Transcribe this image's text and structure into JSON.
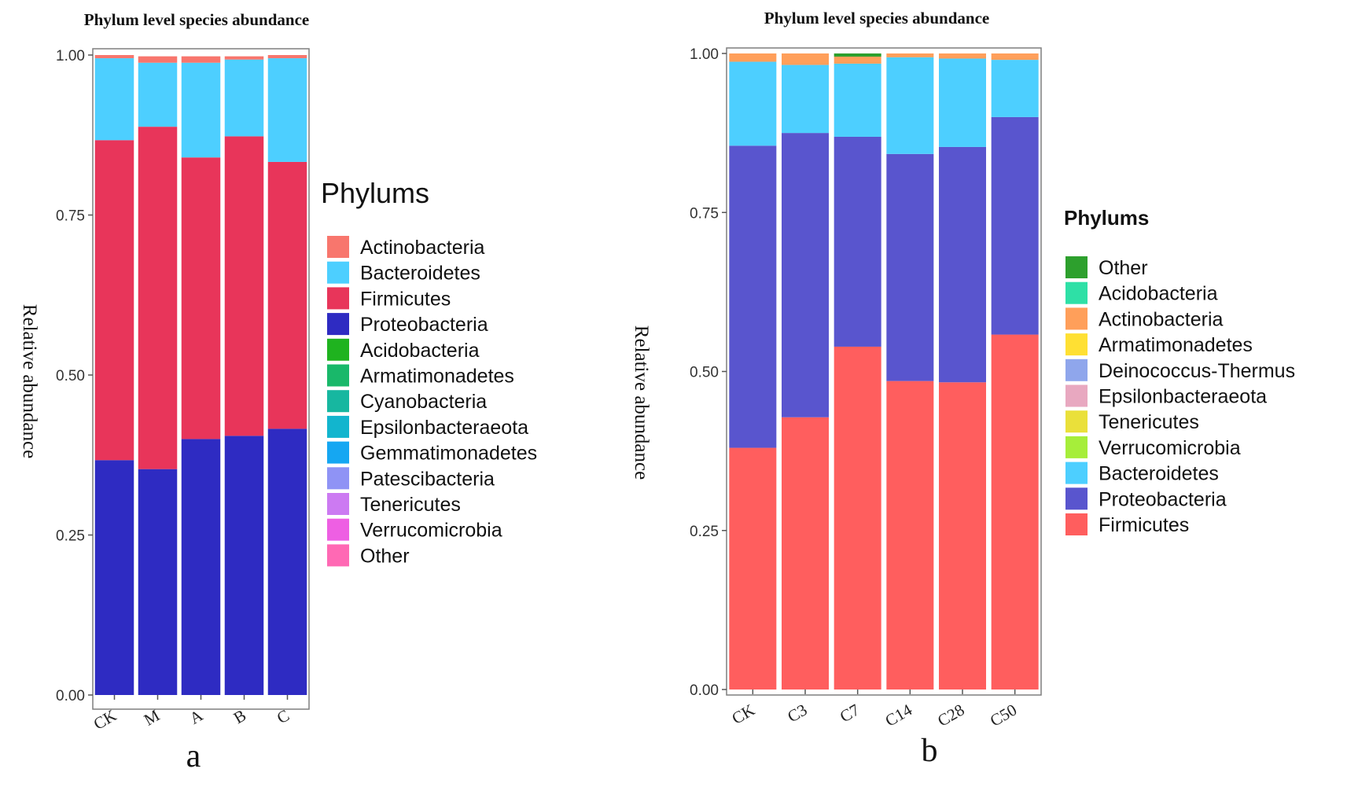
{
  "chart_data": [
    {
      "type": "stacked_bar",
      "panel_label": "a",
      "title": "Phylum level species abundance",
      "xlabel": "",
      "ylabel": "Relative abundance",
      "ylim": [
        0,
        1
      ],
      "yticks": [
        "0.00",
        "0.25",
        "0.50",
        "0.75",
        "1.00"
      ],
      "categories": [
        "CK",
        "M",
        "A",
        "B",
        "C"
      ],
      "legend_title": "Phylums",
      "legend_position": "right",
      "stack_order_bottom_to_top": [
        "Proteobacteria",
        "Firmicutes",
        "Bacteroidetes",
        "Actinobacteria"
      ],
      "series": [
        {
          "name": "Actinobacteria",
          "color": "#F8766D",
          "values": [
            0.005,
            0.01,
            0.01,
            0.005,
            0.005
          ]
        },
        {
          "name": "Bacteroidetes",
          "color": "#4DCFFF",
          "values": [
            0.128,
            0.1,
            0.148,
            0.12,
            0.162
          ]
        },
        {
          "name": "Firmicutes",
          "color": "#E8355A",
          "values": [
            0.5,
            0.535,
            0.44,
            0.468,
            0.417
          ]
        },
        {
          "name": "Proteobacteria",
          "color": "#2E2BC2",
          "values": [
            0.367,
            0.353,
            0.4,
            0.405,
            0.416
          ]
        },
        {
          "name": "Acidobacteria",
          "color": "#1FB31F",
          "values": [
            0,
            0,
            0,
            0,
            0
          ]
        },
        {
          "name": "Armatimonadetes",
          "color": "#19B86A",
          "values": [
            0,
            0,
            0,
            0,
            0
          ]
        },
        {
          "name": "Cyanobacteria",
          "color": "#17B7A0",
          "values": [
            0,
            0,
            0,
            0,
            0
          ]
        },
        {
          "name": "Epsilonbacteraeota",
          "color": "#12B5CE",
          "values": [
            0,
            0,
            0,
            0,
            0
          ]
        },
        {
          "name": "Gemmatimonadetes",
          "color": "#15A7F2",
          "values": [
            0,
            0,
            0,
            0,
            0
          ]
        },
        {
          "name": "Patescibacteria",
          "color": "#8F93F5",
          "values": [
            0,
            0,
            0,
            0,
            0
          ]
        },
        {
          "name": "Tenericutes",
          "color": "#CC7AF2",
          "values": [
            0,
            0,
            0,
            0,
            0
          ]
        },
        {
          "name": "Verrucomicrobia",
          "color": "#EE5FE3",
          "values": [
            0,
            0,
            0,
            0,
            0
          ]
        },
        {
          "name": "Other",
          "color": "#FF69B4",
          "values": [
            0,
            0,
            0,
            0,
            0
          ]
        }
      ]
    },
    {
      "type": "stacked_bar",
      "panel_label": "b",
      "title": "Phylum level species abundance",
      "xlabel": "",
      "ylabel": "Relative abundance",
      "ylim": [
        0,
        1
      ],
      "yticks": [
        "0.00",
        "0.25",
        "0.50",
        "0.75",
        "1.00"
      ],
      "categories": [
        "CK",
        "C3",
        "C7",
        "C14",
        "C28",
        "C50"
      ],
      "legend_title": "Phylums",
      "legend_position": "right",
      "stack_order_bottom_to_top": [
        "Firmicutes",
        "Proteobacteria",
        "Bacteroidetes",
        "Actinobacteria",
        "Other"
      ],
      "series": [
        {
          "name": "Other",
          "color": "#2DA02D",
          "values": [
            0,
            0,
            0.005,
            0,
            0,
            0
          ]
        },
        {
          "name": "Acidobacteria",
          "color": "#2EE0A6",
          "values": [
            0,
            0,
            0,
            0,
            0,
            0
          ]
        },
        {
          "name": "Actinobacteria",
          "color": "#FF9F5A",
          "values": [
            0.013,
            0.018,
            0.011,
            0.006,
            0.008,
            0.01
          ]
        },
        {
          "name": "Armatimonadetes",
          "color": "#FFE033",
          "values": [
            0,
            0,
            0,
            0,
            0,
            0
          ]
        },
        {
          "name": "Deinococcus-Thermus",
          "color": "#8FA6EC",
          "values": [
            0,
            0,
            0,
            0,
            0,
            0
          ]
        },
        {
          "name": "Epsilonbacteraeota",
          "color": "#E8A8C0",
          "values": [
            0,
            0,
            0,
            0,
            0,
            0
          ]
        },
        {
          "name": "Tenericutes",
          "color": "#EAE03A",
          "values": [
            0,
            0,
            0,
            0,
            0,
            0
          ]
        },
        {
          "name": "Verrucomicrobia",
          "color": "#A6EE3A",
          "values": [
            0,
            0,
            0,
            0,
            0,
            0
          ]
        },
        {
          "name": "Bacteroidetes",
          "color": "#4DCFFF",
          "values": [
            0.132,
            0.107,
            0.115,
            0.152,
            0.139,
            0.09
          ]
        },
        {
          "name": "Proteobacteria",
          "color": "#5955CE",
          "values": [
            0.475,
            0.447,
            0.33,
            0.357,
            0.37,
            0.342
          ]
        },
        {
          "name": "Firmicutes",
          "color": "#FF5E5E",
          "values": [
            0.38,
            0.428,
            0.539,
            0.485,
            0.483,
            0.558
          ]
        }
      ]
    }
  ],
  "figure_labels": {
    "a": "a",
    "b": "b"
  }
}
